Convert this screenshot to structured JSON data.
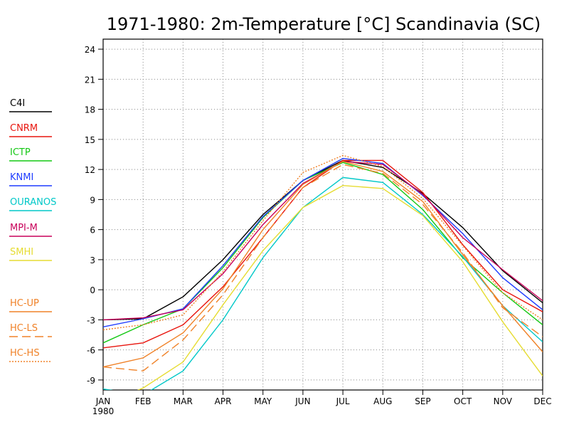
{
  "chart_data": {
    "type": "line",
    "title": "1971-1980: 2m-Temperature [°C] Scandinavia (SC)",
    "xlabel": "",
    "ylabel": "",
    "categories": [
      "JAN",
      "FEB",
      "MAR",
      "APR",
      "MAY",
      "JUN",
      "JUL",
      "AUG",
      "SEP",
      "OCT",
      "NOV",
      "DEC"
    ],
    "x_sublabel": "1980",
    "yticks": [
      -9,
      -6,
      -3,
      0,
      3,
      6,
      9,
      12,
      15,
      18,
      21,
      24
    ],
    "ylim": [
      -10,
      25
    ],
    "grid": true,
    "legend_position": "left",
    "series": [
      {
        "name": "C4I",
        "color": "#000000",
        "style": "solid",
        "values": [
          -3.0,
          -2.9,
          -0.7,
          3.0,
          7.5,
          10.9,
          12.9,
          12.2,
          9.6,
          6.2,
          1.9,
          -1.3
        ]
      },
      {
        "name": "CNRM",
        "color": "#e8150e",
        "style": "solid",
        "values": [
          -5.8,
          -5.3,
          -3.5,
          0.3,
          5.2,
          10.2,
          12.9,
          12.9,
          9.7,
          4.5,
          0.0,
          -2.2
        ]
      },
      {
        "name": "ICTP",
        "color": "#14c814",
        "style": "solid",
        "values": [
          -5.3,
          -3.5,
          -1.9,
          2.2,
          7.2,
          10.9,
          12.7,
          11.5,
          8.0,
          3.2,
          -0.3,
          -3.5
        ]
      },
      {
        "name": "KNMI",
        "color": "#1e3cff",
        "style": "solid",
        "values": [
          -3.7,
          -2.9,
          -1.9,
          2.4,
          7.3,
          10.9,
          13.1,
          12.6,
          9.4,
          5.6,
          1.2,
          -2.0
        ]
      },
      {
        "name": "OURANOS",
        "color": "#00c8c8",
        "style": "solid",
        "values": [
          -9.9,
          -10.5,
          -8.1,
          -3.0,
          3.2,
          8.2,
          11.2,
          10.7,
          7.5,
          3.3,
          -1.6,
          -5.2
        ]
      },
      {
        "name": "MPI-M",
        "color": "#c8005a",
        "style": "solid",
        "values": [
          -3.0,
          -2.8,
          -2.0,
          1.6,
          6.5,
          10.6,
          12.8,
          12.5,
          9.5,
          5.2,
          2.0,
          -1.1
        ]
      },
      {
        "name": "SMHI",
        "color": "#e6dc32",
        "style": "solid",
        "values": [
          -11.5,
          -9.8,
          -7.2,
          -1.5,
          3.9,
          8.2,
          10.4,
          10.1,
          7.4,
          2.8,
          -3.2,
          -8.6
        ]
      },
      {
        "name": "HC-UP",
        "color": "#f08228",
        "style": "solid",
        "values": [
          -7.7,
          -6.8,
          -4.3,
          0.1,
          6.0,
          10.5,
          12.8,
          11.8,
          8.8,
          3.5,
          -1.6,
          -6.2
        ]
      },
      {
        "name": "HC-LS",
        "color": "#f08228",
        "style": "dashed",
        "values": [
          -7.7,
          -8.1,
          -5.0,
          -0.5,
          5.2,
          10.2,
          12.5,
          11.6,
          8.5,
          3.7,
          -1.8,
          -4.7
        ]
      },
      {
        "name": "HC-HS",
        "color": "#f08228",
        "style": "dotted",
        "values": [
          -4.0,
          -3.5,
          -2.5,
          1.8,
          6.9,
          11.7,
          13.4,
          12.3,
          9.1,
          4.4,
          -0.3,
          -3.0
        ]
      }
    ]
  }
}
